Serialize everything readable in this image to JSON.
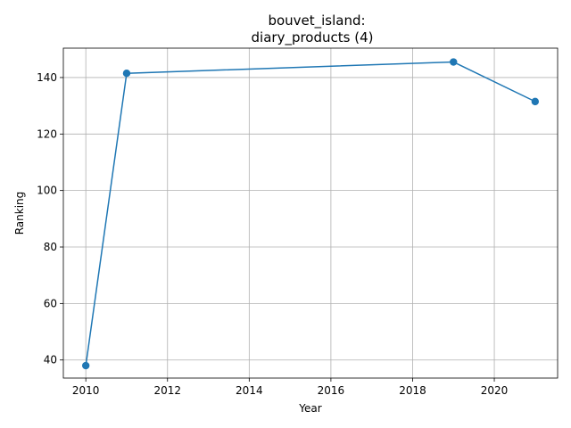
{
  "chart_data": {
    "type": "line",
    "title_line1": "bouvet_island:",
    "title_line2": "diary_products (4)",
    "xlabel": "Year",
    "ylabel": "Ranking",
    "xlim": [
      2009.45,
      2021.55
    ],
    "ylim": [
      33.6,
      150.4
    ],
    "xticks": [
      2010,
      2012,
      2014,
      2016,
      2018,
      2020
    ],
    "yticks": [
      40,
      60,
      80,
      100,
      120,
      140
    ],
    "grid": true,
    "series": [
      {
        "color": "#1f77b4",
        "marker": "circle",
        "x": [
          2010,
          2011,
          2019,
          2021
        ],
        "y": [
          38,
          141.5,
          145.5,
          131.5
        ]
      }
    ]
  }
}
